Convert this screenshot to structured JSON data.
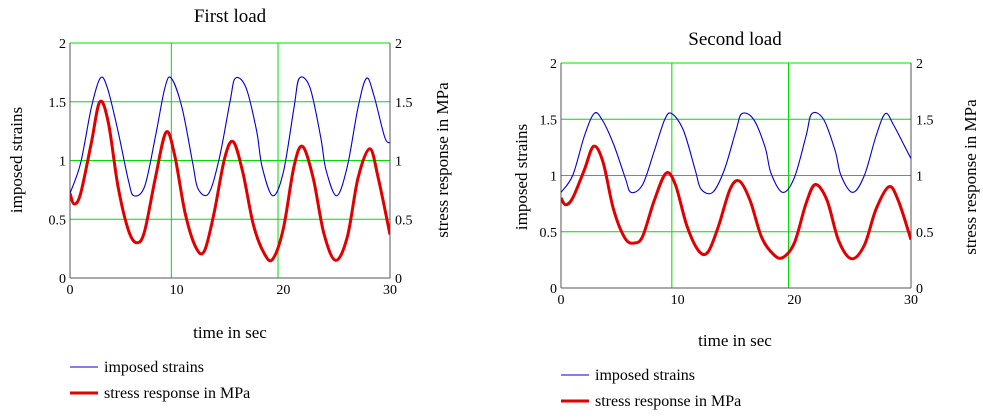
{
  "chart_data": [
    {
      "type": "line",
      "title": "First load",
      "xlabel": "time in sec",
      "ylabel_left": "imposed strains",
      "ylabel_right": "stress response in MPa",
      "xlim": [
        0,
        30
      ],
      "ylim_left": [
        0,
        2
      ],
      "ylim_right": [
        0,
        2
      ],
      "x_ticks": [
        "0",
        "10",
        "20",
        "30"
      ],
      "y_ticks_left": [
        "0",
        "0.5",
        "1",
        "1.5",
        "2"
      ],
      "y_ticks_right": [
        "0",
        "0.5",
        "1",
        "1.5",
        "2"
      ],
      "grid": true,
      "grid_x_values": [
        9.5,
        19.5
      ],
      "grid_y_values": [
        0.5,
        1.0,
        1.5
      ],
      "legend_position": "bottom-left",
      "series": [
        {
          "name": "imposed strains",
          "color": "#0000cc",
          "axis": "left",
          "x": [
            0,
            1,
            2,
            2.83,
            3.5,
            4.5,
            5.5,
            6,
            7,
            8,
            8.9,
            9.5,
            10.5,
            11.5,
            12,
            13,
            14,
            15,
            15.5,
            16.5,
            17.5,
            18,
            19,
            20,
            21,
            21.5,
            22.5,
            23.5,
            24,
            25,
            26,
            27,
            27.8,
            28.5,
            29.5,
            30
          ],
          "y": [
            0.72,
            0.98,
            1.45,
            1.7,
            1.62,
            1.25,
            0.82,
            0.7,
            0.78,
            1.2,
            1.62,
            1.7,
            1.45,
            0.98,
            0.76,
            0.72,
            1.02,
            1.5,
            1.7,
            1.62,
            1.25,
            0.95,
            0.7,
            0.9,
            1.45,
            1.7,
            1.62,
            1.2,
            0.92,
            0.7,
            0.95,
            1.45,
            1.7,
            1.55,
            1.2,
            1.15
          ]
        },
        {
          "name": "stress response in MPa",
          "color": "#e00000",
          "axis": "right",
          "x": [
            0,
            0.4,
            1,
            2,
            2.8,
            3.6,
            4.5,
            5.5,
            6.3,
            7,
            8,
            9.0,
            9.8,
            10.8,
            11.8,
            12.6,
            13.5,
            14.5,
            15.3,
            16.2,
            17.2,
            18.2,
            19.0,
            20,
            21,
            21.8,
            22.8,
            23.8,
            24.9,
            26,
            27,
            28.1,
            28.9,
            30
          ],
          "y": [
            0.72,
            0.63,
            0.72,
            1.15,
            1.5,
            1.32,
            0.78,
            0.4,
            0.3,
            0.4,
            0.85,
            1.24,
            1.05,
            0.55,
            0.26,
            0.23,
            0.55,
            1.02,
            1.16,
            0.9,
            0.45,
            0.21,
            0.16,
            0.42,
            0.95,
            1.12,
            0.85,
            0.38,
            0.15,
            0.35,
            0.85,
            1.1,
            0.85,
            0.37
          ]
        }
      ]
    },
    {
      "type": "line",
      "title": "Second load",
      "xlabel": "time in sec",
      "ylabel_left": "imposed strains",
      "ylabel_right": "stress response in MPa",
      "xlim": [
        0,
        30
      ],
      "ylim_left": [
        0,
        2
      ],
      "ylim_right": [
        0,
        2
      ],
      "x_ticks": [
        "0",
        "10",
        "20",
        "30"
      ],
      "y_ticks_left": [
        "0",
        "0.5",
        "1",
        "1.5",
        "2"
      ],
      "y_ticks_right": [
        "0",
        "0.5",
        "1",
        "1.5",
        "2"
      ],
      "grid": true,
      "grid_x_values": [
        9.5,
        19.5
      ],
      "grid_y_values": [
        0.5,
        1.0,
        1.5
      ],
      "legend_position": "bottom-left",
      "series": [
        {
          "name": "imposed strains",
          "color": "#0000cc",
          "axis": "left",
          "x": [
            0,
            1,
            2,
            2.83,
            3.5,
            4.5,
            5.5,
            6,
            7,
            8,
            8.9,
            9.5,
            10.5,
            11.5,
            12,
            13,
            14,
            15,
            15.5,
            16.5,
            17.5,
            18,
            19,
            20,
            21,
            21.5,
            22.5,
            23.5,
            24,
            25,
            26,
            27,
            27.8,
            28.5,
            29.5,
            30
          ],
          "y": [
            0.85,
            1.0,
            1.35,
            1.55,
            1.5,
            1.28,
            0.98,
            0.85,
            0.92,
            1.22,
            1.5,
            1.55,
            1.4,
            1.05,
            0.88,
            0.85,
            1.05,
            1.4,
            1.55,
            1.5,
            1.25,
            1.02,
            0.85,
            0.98,
            1.35,
            1.55,
            1.5,
            1.22,
            1.0,
            0.85,
            1.0,
            1.35,
            1.55,
            1.45,
            1.25,
            1.15
          ]
        },
        {
          "name": "stress response in MPa",
          "color": "#e00000",
          "axis": "right",
          "x": [
            0,
            0.4,
            1,
            2,
            2.8,
            3.6,
            4.5,
            5.5,
            6.3,
            7,
            8,
            9.0,
            9.8,
            10.8,
            11.8,
            12.6,
            13.5,
            14.5,
            15.3,
            16.2,
            17.2,
            18.2,
            19.0,
            20,
            21,
            21.8,
            22.8,
            23.8,
            24.9,
            26,
            27,
            28.1,
            28.9,
            30
          ],
          "y": [
            0.8,
            0.74,
            0.8,
            1.05,
            1.26,
            1.12,
            0.7,
            0.44,
            0.4,
            0.46,
            0.78,
            1.02,
            0.92,
            0.55,
            0.33,
            0.32,
            0.55,
            0.88,
            0.95,
            0.78,
            0.45,
            0.3,
            0.27,
            0.4,
            0.75,
            0.92,
            0.78,
            0.42,
            0.26,
            0.38,
            0.7,
            0.9,
            0.78,
            0.43
          ]
        }
      ]
    }
  ]
}
